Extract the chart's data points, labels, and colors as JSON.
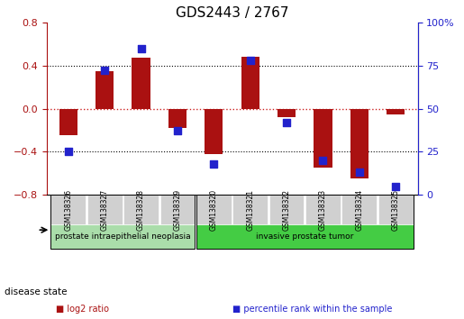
{
  "title": "GDS2443 / 2767",
  "samples": [
    "GSM138326",
    "GSM138327",
    "GSM138328",
    "GSM138329",
    "GSM138320",
    "GSM138321",
    "GSM138322",
    "GSM138323",
    "GSM138324",
    "GSM138325"
  ],
  "log2_ratio": [
    -0.25,
    0.35,
    0.47,
    -0.18,
    -0.42,
    0.48,
    -0.08,
    -0.55,
    -0.65,
    -0.05
  ],
  "percentile_rank": [
    25,
    72,
    85,
    37,
    18,
    78,
    42,
    20,
    13,
    5
  ],
  "ylim_left": [
    -0.8,
    0.8
  ],
  "ylim_right": [
    0,
    100
  ],
  "yticks_left": [
    -0.8,
    -0.4,
    0,
    0.4,
    0.8
  ],
  "yticks_right": [
    0,
    25,
    50,
    75,
    100
  ],
  "yticklabels_right": [
    "0",
    "25",
    "50",
    "75",
    "100%"
  ],
  "bar_color": "#aa1111",
  "dot_color": "#2222cc",
  "zero_line_color": "#cc2222",
  "grid_color": "black",
  "disease_groups": [
    {
      "label": "prostate intraepithelial neoplasia",
      "samples": [
        "GSM138326",
        "GSM138327",
        "GSM138328",
        "GSM138329"
      ],
      "color": "#aaddaa"
    },
    {
      "label": "invasive prostate tumor",
      "samples": [
        "GSM138320",
        "GSM138321",
        "GSM138322",
        "GSM138323",
        "GSM138324",
        "GSM138325"
      ],
      "color": "#44cc44"
    }
  ],
  "legend_items": [
    {
      "label": "log2 ratio",
      "color": "#aa1111",
      "marker": "s"
    },
    {
      "label": "percentile rank within the sample",
      "color": "#2222cc",
      "marker": "s"
    }
  ],
  "disease_state_label": "disease state"
}
